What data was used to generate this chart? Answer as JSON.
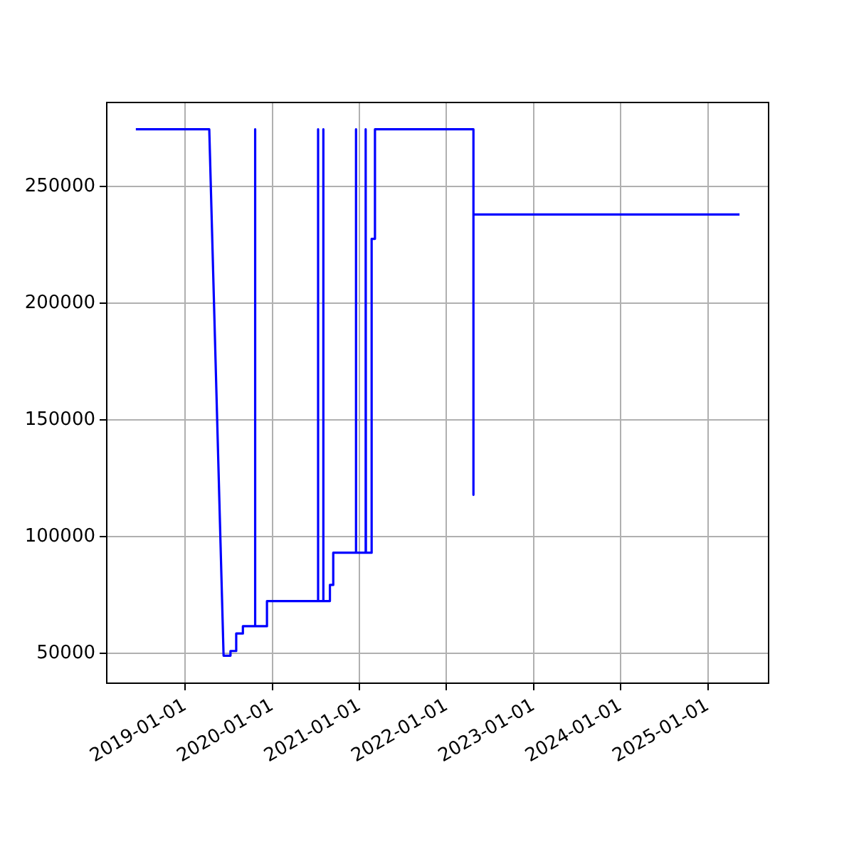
{
  "chart_data": {
    "type": "line",
    "xlim": [
      "2018-02-06",
      "2025-09-13"
    ],
    "ylim": [
      37200,
      286000
    ],
    "xticks": [
      "2019-01-01",
      "2020-01-01",
      "2021-01-01",
      "2022-01-01",
      "2023-01-01",
      "2024-01-01",
      "2025-01-01"
    ],
    "yticks": [
      50000,
      100000,
      150000,
      200000,
      250000
    ],
    "grid": true,
    "legend": false,
    "marker": "none",
    "line_style": "solid",
    "series": [
      {
        "color": "#0000ff",
        "x": [
          "2018-06-08",
          "2019-04-12",
          "2019-06-11",
          "2019-07-10",
          "2019-07-10",
          "2019-08-03",
          "2019-08-03",
          "2019-08-31",
          "2019-08-31",
          "2019-10-21",
          "2019-10-21",
          "2019-10-22",
          "2019-12-10",
          "2019-12-10",
          "2020-07-11",
          "2020-07-11",
          "2020-07-12",
          "2020-08-02",
          "2020-08-02",
          "2020-08-03",
          "2020-08-30",
          "2020-08-30",
          "2020-09-13",
          "2020-09-13",
          "2020-12-17",
          "2020-12-17",
          "2020-12-18",
          "2021-01-27",
          "2021-01-27",
          "2021-01-28",
          "2021-02-21",
          "2021-02-21",
          "2021-03-07",
          "2021-03-07",
          "2022-04-24",
          "2022-04-24",
          "2022-04-24",
          "2025-05-14"
        ],
        "values": [
          274500,
          274500,
          49000,
          49000,
          51000,
          51000,
          58500,
          58500,
          61600,
          61600,
          274500,
          61600,
          61600,
          72400,
          72400,
          274500,
          72400,
          72400,
          274500,
          72400,
          72400,
          79300,
          79300,
          93100,
          93100,
          274500,
          93100,
          93100,
          274500,
          93100,
          93100,
          227600,
          227600,
          274500,
          274500,
          117900,
          238000,
          238000
        ]
      }
    ]
  }
}
